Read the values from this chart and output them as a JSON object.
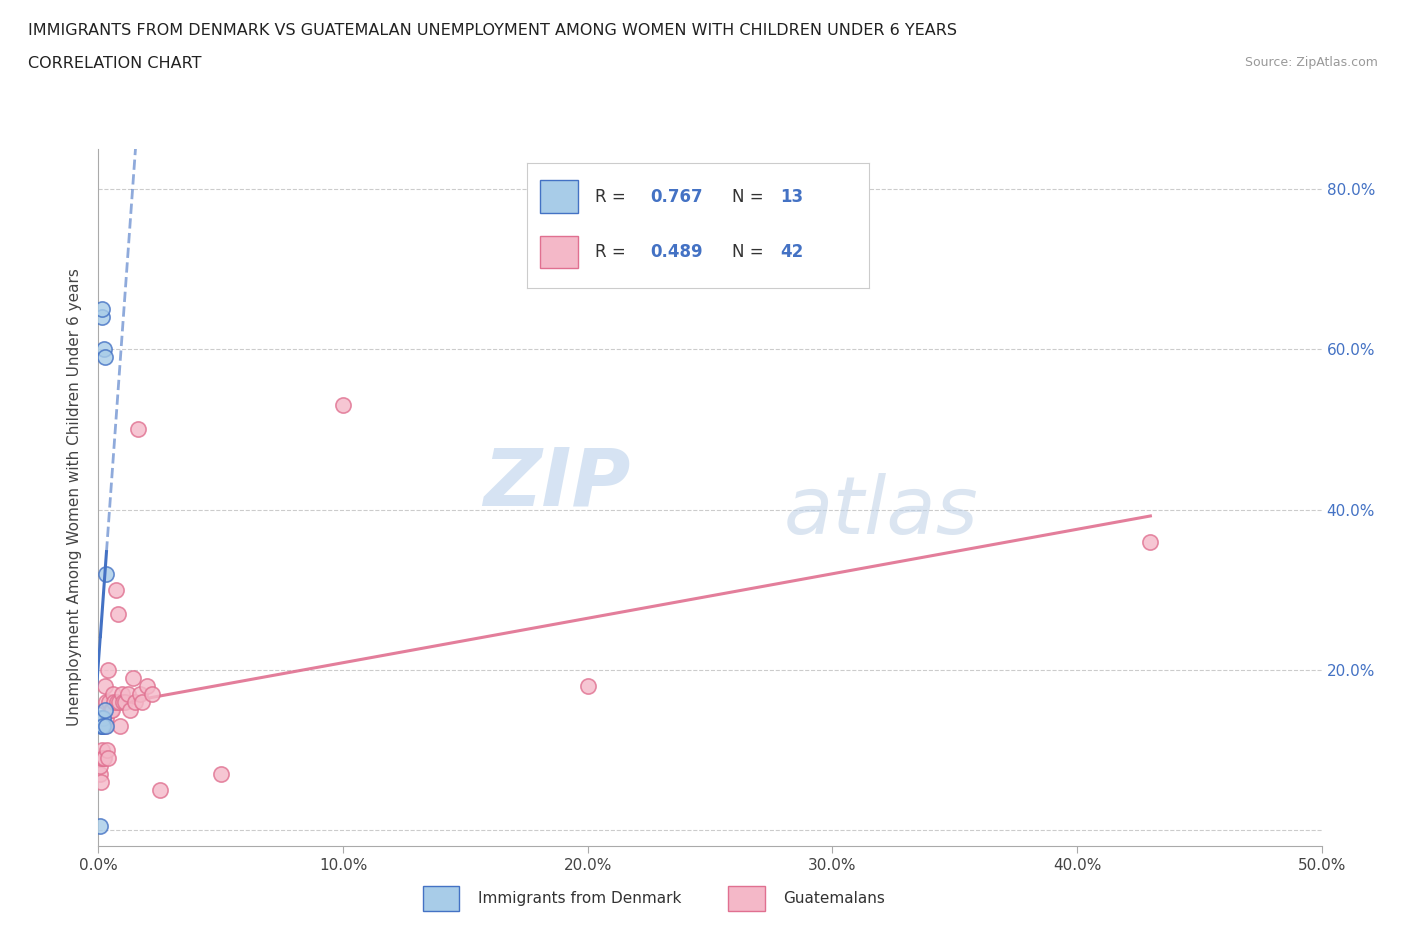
{
  "title_line1": "IMMIGRANTS FROM DENMARK VS GUATEMALAN UNEMPLOYMENT AMONG WOMEN WITH CHILDREN UNDER 6 YEARS",
  "title_line2": "CORRELATION CHART",
  "source_text": "Source: ZipAtlas.com",
  "ylabel": "Unemployment Among Women with Children Under 6 years",
  "watermark_zip": "ZIP",
  "watermark_atlas": "atlas",
  "xlim": [
    0.0,
    0.5
  ],
  "ylim": [
    -0.02,
    0.85
  ],
  "xticks": [
    0.0,
    0.1,
    0.2,
    0.3,
    0.4,
    0.5
  ],
  "xticklabels": [
    "0.0%",
    "10.0%",
    "20.0%",
    "30.0%",
    "40.0%",
    "50.0%"
  ],
  "yticks_right": [
    0.0,
    0.2,
    0.4,
    0.6,
    0.8
  ],
  "yticklabels_right": [
    "",
    "20.0%",
    "40.0%",
    "60.0%",
    "80.0%"
  ],
  "blue_fill": "#a8cce8",
  "blue_edge": "#4472c4",
  "pink_fill": "#f4b8c8",
  "pink_edge": "#e07090",
  "blue_line": "#4472c4",
  "pink_line": "#e07090",
  "legend_R1": "0.767",
  "legend_N1": "13",
  "legend_R2": "0.489",
  "legend_N2": "42",
  "legend_label1": "Immigrants from Denmark",
  "legend_label2": "Guatemalans",
  "denmark_x": [
    0.0008,
    0.001,
    0.0012,
    0.0013,
    0.0015,
    0.0016,
    0.0018,
    0.002,
    0.0022,
    0.0025,
    0.0027,
    0.003,
    0.0033
  ],
  "denmark_y": [
    0.005,
    0.13,
    0.14,
    0.64,
    0.65,
    0.13,
    0.14,
    0.13,
    0.6,
    0.15,
    0.59,
    0.32,
    0.13
  ],
  "guatemala_x": [
    0.0005,
    0.0008,
    0.001,
    0.0012,
    0.0015,
    0.0018,
    0.002,
    0.0022,
    0.0025,
    0.0028,
    0.003,
    0.0032,
    0.0035,
    0.0038,
    0.004,
    0.0045,
    0.005,
    0.0055,
    0.006,
    0.0065,
    0.007,
    0.0075,
    0.008,
    0.0085,
    0.009,
    0.0095,
    0.01,
    0.011,
    0.012,
    0.013,
    0.014,
    0.015,
    0.016,
    0.017,
    0.018,
    0.02,
    0.022,
    0.025,
    0.05,
    0.1,
    0.2,
    0.43
  ],
  "guatemala_y": [
    0.07,
    0.08,
    0.09,
    0.06,
    0.1,
    0.09,
    0.13,
    0.09,
    0.18,
    0.13,
    0.16,
    0.14,
    0.1,
    0.09,
    0.2,
    0.16,
    0.15,
    0.15,
    0.17,
    0.16,
    0.3,
    0.16,
    0.27,
    0.16,
    0.13,
    0.17,
    0.16,
    0.16,
    0.17,
    0.15,
    0.19,
    0.16,
    0.5,
    0.17,
    0.16,
    0.18,
    0.17,
    0.05,
    0.07,
    0.53,
    0.18,
    0.36
  ],
  "background_color": "#ffffff",
  "grid_color": "#cccccc",
  "accent_color": "#4472c4"
}
